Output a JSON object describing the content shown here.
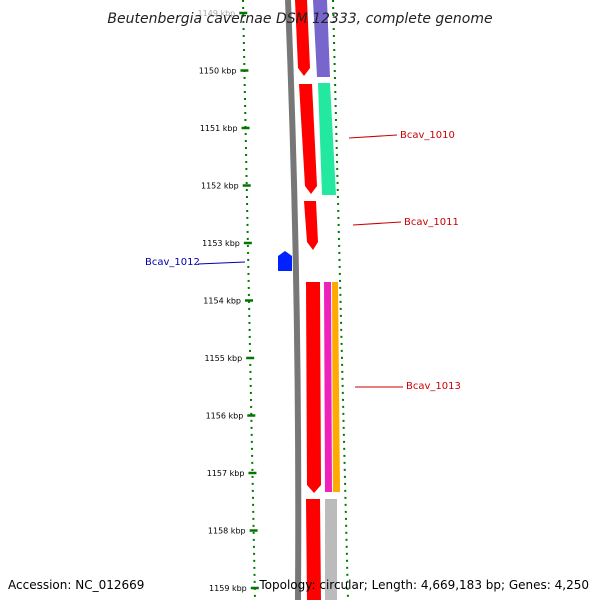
{
  "title": "Beutenbergia cavernae DSM 12333, complete genome",
  "ruler": {
    "ticks": [
      {
        "label": "1149 kbp"
      },
      {
        "label": "1150 kbp"
      },
      {
        "label": "1151 kbp"
      },
      {
        "label": "1152 kbp"
      },
      {
        "label": "1153 kbp"
      },
      {
        "label": "1154 kbp"
      },
      {
        "label": "1155 kbp"
      },
      {
        "label": "1156 kbp"
      },
      {
        "label": "1157 kbp"
      },
      {
        "label": "1158 kbp"
      },
      {
        "label": "1159 kbp"
      }
    ]
  },
  "genes": [
    {
      "label": "Bcav_1010",
      "color": "#cc0000"
    },
    {
      "label": "Bcav_1011",
      "color": "#cc0000"
    },
    {
      "label": "Bcav_1012",
      "color": "#0000aa"
    },
    {
      "label": "Bcav_1013",
      "color": "#cc0000"
    }
  ],
  "colors": {
    "ruler": "#007700",
    "backbone": "#777777",
    "cds": "#ff0000",
    "track_purple": "#7766cc",
    "track_teal": "#22e8a0",
    "track_magenta": "#ee22bb",
    "track_orange": "#ffaa00",
    "track_gray": "#bbbbbb",
    "reverse_gene": "#0022ff"
  },
  "footer": {
    "accession": "Accession: NC_012669",
    "topology": "Topology: circular; Length: 4,669,183 bp; Genes: 4,250"
  }
}
